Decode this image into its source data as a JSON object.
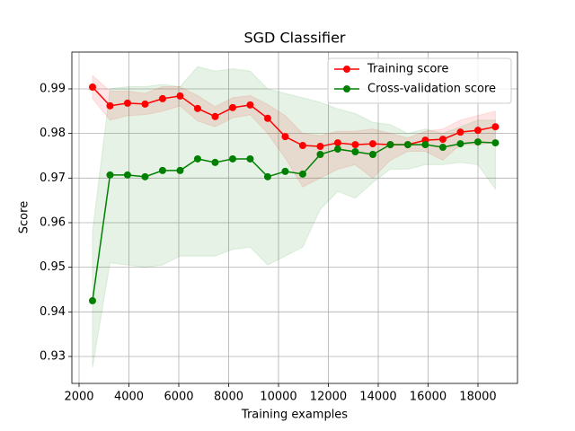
{
  "chart_data": {
    "type": "line",
    "title": "SGD Classifier",
    "x_label": "Training examples",
    "y_label": "Score",
    "x": [
      2540,
      3243,
      3945,
      4648,
      5350,
      6053,
      6756,
      7458,
      8161,
      8863,
      9566,
      10269,
      10971,
      11674,
      12376,
      13079,
      13782,
      14484,
      15187,
      15889,
      16592,
      17295,
      17997,
      18700
    ],
    "series": [
      {
        "name": "Training score",
        "color": "#ff0000",
        "values": [
          0.9904,
          0.9862,
          0.9868,
          0.9866,
          0.9878,
          0.9884,
          0.9856,
          0.9838,
          0.9858,
          0.9864,
          0.9834,
          0.9793,
          0.9773,
          0.9771,
          0.9779,
          0.9775,
          0.9777,
          0.9775,
          0.9775,
          0.9785,
          0.9787,
          0.9803,
          0.9807,
          0.9815
        ],
        "upper": [
          0.993,
          0.9895,
          0.9895,
          0.989,
          0.9905,
          0.9905,
          0.9885,
          0.986,
          0.988,
          0.9885,
          0.9865,
          0.984,
          0.98,
          0.9795,
          0.9805,
          0.9805,
          0.981,
          0.98,
          0.979,
          0.9805,
          0.981,
          0.983,
          0.984,
          0.985
        ],
        "lower": [
          0.9878,
          0.983,
          0.984,
          0.9842,
          0.985,
          0.9862,
          0.9828,
          0.9815,
          0.9835,
          0.9842,
          0.98,
          0.9745,
          0.968,
          0.97,
          0.972,
          0.973,
          0.97,
          0.974,
          0.976,
          0.976,
          0.974,
          0.9775,
          0.9775,
          0.978
        ]
      },
      {
        "name": "Cross-validation score",
        "color": "#008000",
        "values": [
          0.9425,
          0.9707,
          0.9707,
          0.9703,
          0.9717,
          0.9717,
          0.9743,
          0.9735,
          0.9743,
          0.9743,
          0.9703,
          0.9715,
          0.9709,
          0.9753,
          0.9765,
          0.9759,
          0.9753,
          0.9775,
          0.9775,
          0.9775,
          0.9769,
          0.9777,
          0.9781,
          0.9779
        ],
        "upper": [
          0.958,
          0.99,
          0.9905,
          0.9905,
          0.991,
          0.9905,
          0.995,
          0.994,
          0.9945,
          0.994,
          0.99,
          0.989,
          0.988,
          0.987,
          0.9855,
          0.9845,
          0.9825,
          0.982,
          0.98,
          0.981,
          0.98,
          0.9815,
          0.983,
          0.983
        ],
        "lower": [
          0.9275,
          0.951,
          0.9505,
          0.95,
          0.9505,
          0.9525,
          0.9525,
          0.9525,
          0.954,
          0.9545,
          0.9505,
          0.9525,
          0.9545,
          0.963,
          0.967,
          0.9655,
          0.969,
          0.972,
          0.972,
          0.973,
          0.973,
          0.9735,
          0.973,
          0.9675
        ]
      }
    ],
    "xlim": [
      1712,
      19586
    ],
    "ylim": [
      0.92396,
      0.99825
    ],
    "xticks": [
      2000,
      4000,
      6000,
      8000,
      10000,
      12000,
      14000,
      16000,
      18000
    ],
    "yticks": [
      0.93,
      0.94,
      0.95,
      0.96,
      0.97,
      0.98,
      0.99
    ],
    "grid": true,
    "legend": "upper right"
  }
}
